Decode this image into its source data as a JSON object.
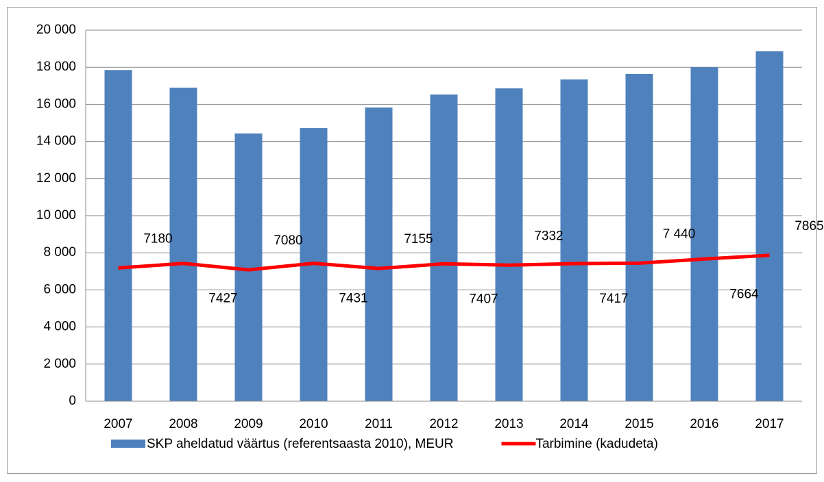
{
  "chart_data": {
    "type": "bar",
    "categories": [
      "2007",
      "2008",
      "2009",
      "2010",
      "2011",
      "2012",
      "2013",
      "2014",
      "2015",
      "2016",
      "2017"
    ],
    "series": [
      {
        "name": "SKP aheldatud väärtus (referentsaasta 2010), MEUR",
        "color": "#4f81bd",
        "values": [
          17850,
          16900,
          14430,
          14720,
          15830,
          16530,
          16860,
          17340,
          17640,
          18000,
          18860
        ]
      },
      {
        "name": "Tarbimine (kadudeta)",
        "type": "line",
        "color": "#ff0000",
        "values": [
          7180,
          7427,
          7080,
          7431,
          7155,
          7407,
          7332,
          7417,
          7440,
          7664,
          7865
        ],
        "value_labels": [
          "7180",
          "7427",
          "7080",
          "7431",
          "7155",
          "7407",
          "7332",
          "7417",
          "7 440",
          "7664",
          "7865"
        ]
      }
    ],
    "ylim": [
      0,
      20000
    ],
    "yticks": [
      0,
      {
        "value": 2000,
        "label": "2 000"
      },
      {
        "value": 4000,
        "label": "4 000"
      },
      {
        "value": 6000,
        "label": "6 000"
      },
      {
        "value": 8000,
        "label": "8 000"
      },
      {
        "value": 10000,
        "label": "10 000"
      },
      {
        "value": 12000,
        "label": "12 000"
      },
      {
        "value": 14000,
        "label": "14 000"
      },
      {
        "value": 16000,
        "label": "16 000"
      },
      {
        "value": 18000,
        "label": "18 000"
      },
      {
        "value": 20000,
        "label": "20 000"
      }
    ],
    "grid": true
  }
}
